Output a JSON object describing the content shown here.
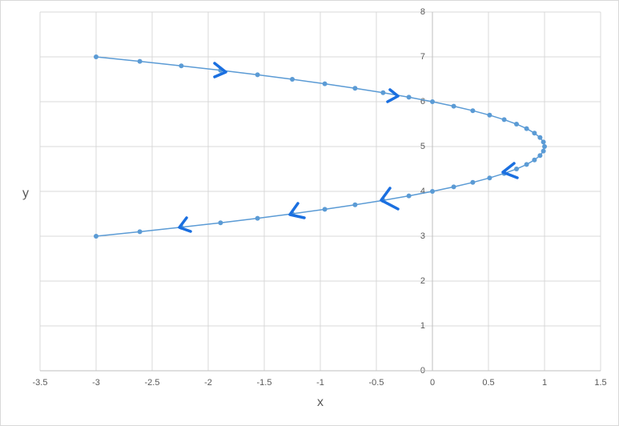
{
  "chart_data": {
    "type": "scatter",
    "x_label": "x",
    "y_label": "y",
    "series": [
      {
        "color": "#5b9bd5",
        "x": [
          -3,
          -2.61,
          -2.24,
          -1.89,
          -1.56,
          -1.25,
          -0.96,
          -0.69,
          -0.44,
          -0.21,
          0,
          0.19,
          0.36,
          0.51,
          0.64,
          0.75,
          0.84,
          0.91,
          0.96,
          0.99,
          1,
          0.99,
          0.96,
          0.91,
          0.84,
          0.75,
          0.64,
          0.51,
          0.36,
          0.19,
          0,
          -0.21,
          -0.44,
          -0.69,
          -0.96,
          -1.25,
          -1.56,
          -1.89,
          -2.24,
          -2.61,
          -3
        ],
        "values": [
          7,
          6.9,
          6.8,
          6.7,
          6.6,
          6.5,
          6.4,
          6.3,
          6.2,
          6.1,
          6,
          5.9,
          5.8,
          5.7,
          5.6,
          5.5,
          5.4,
          5.3,
          5.2,
          5.1,
          5,
          4.9,
          4.8,
          4.7,
          4.6,
          4.5,
          4.4,
          4.3,
          4.2,
          4.1,
          4,
          3.9,
          3.8,
          3.7,
          3.6,
          3.5,
          3.4,
          3.3,
          3.2,
          3.1,
          3
        ]
      }
    ],
    "xlim": [
      -3.5,
      1.5
    ],
    "xticks": [
      -3.5,
      -3,
      -2.5,
      -2,
      -1.5,
      -1,
      -0.5,
      0,
      0.5,
      1,
      1.5
    ],
    "ylim": [
      0,
      8
    ],
    "yticks": [
      0,
      1,
      2,
      3,
      4,
      5,
      6,
      7,
      8
    ],
    "grid": true
  }
}
